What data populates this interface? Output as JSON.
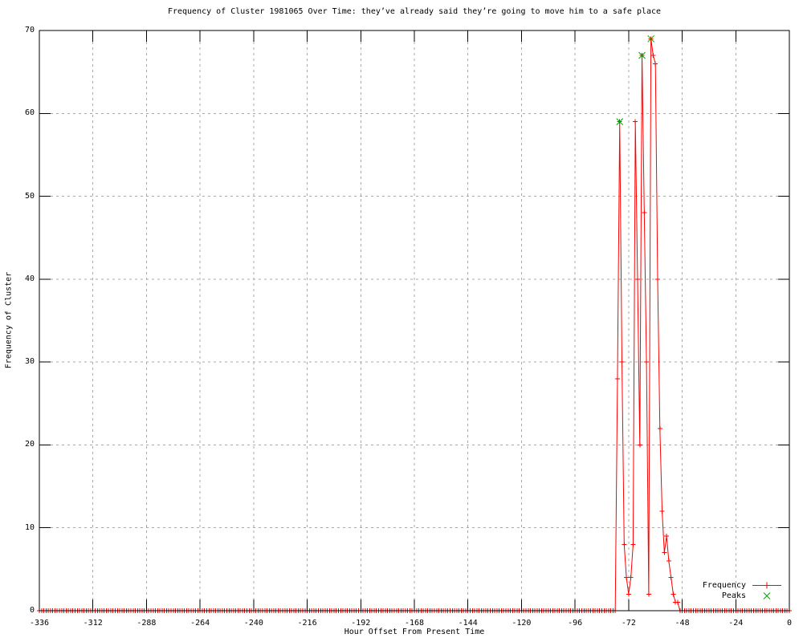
{
  "title": "Frequency of Cluster 1981065 Over Time: they’ve already said they’re going to move him to a safe place",
  "colors": {
    "frequency_series": "#ff0000",
    "peaks_series": "#00a400",
    "grid": "#a8a8a8",
    "frame": "#000000",
    "background": "#ffffff"
  },
  "legend": {
    "entries": [
      {
        "label": "Frequency",
        "color": "#ff0000",
        "marker": "plus",
        "line": true
      },
      {
        "label": "Peaks",
        "color": "#00a400",
        "marker": "cross",
        "line": false
      }
    ]
  },
  "chart_data": {
    "type": "line",
    "title": "Frequency of Cluster 1981065 Over Time: they’ve already said they’re going to move him to a safe place",
    "xlabel": "Hour Offset From Present Time",
    "ylabel": "Frequency of Cluster",
    "xlim": [
      -336,
      0
    ],
    "ylim": [
      0,
      70
    ],
    "x_ticks": [
      -336,
      -312,
      -288,
      -264,
      -240,
      -216,
      -192,
      -168,
      -144,
      -120,
      -96,
      -72,
      -48,
      -24,
      0
    ],
    "y_ticks": [
      0,
      10,
      20,
      30,
      40,
      50,
      60,
      70
    ],
    "grid": "dashed",
    "legend_position": "bottom-right",
    "sampling": "hourly; every hour from -336 to 0 has a data point; hours not listed in nonzero_points have value 0",
    "series": [
      {
        "name": "Frequency",
        "style": "linespoints-plus",
        "nonzero_points": [
          [
            -78,
            0
          ],
          [
            -77,
            28
          ],
          [
            -76,
            59
          ],
          [
            -75,
            30
          ],
          [
            -74,
            8
          ],
          [
            -73,
            4
          ],
          [
            -72,
            2
          ],
          [
            -71,
            4
          ],
          [
            -70,
            8
          ],
          [
            -69,
            59
          ],
          [
            -68,
            40
          ],
          [
            -67,
            20
          ],
          [
            -66,
            67
          ],
          [
            -65,
            48
          ],
          [
            -64,
            30
          ],
          [
            -63,
            2
          ],
          [
            -62,
            69
          ],
          [
            -61,
            67
          ],
          [
            -60,
            66
          ],
          [
            -59,
            40
          ],
          [
            -58,
            22
          ],
          [
            -57,
            12
          ],
          [
            -56,
            7
          ],
          [
            -55,
            9
          ],
          [
            -54,
            6
          ],
          [
            -53,
            4
          ],
          [
            -52,
            2
          ],
          [
            -51,
            1
          ],
          [
            -50,
            1
          ],
          [
            -49,
            0
          ]
        ]
      },
      {
        "name": "Peaks",
        "style": "points-cross",
        "points": [
          [
            -76,
            59
          ],
          [
            -66,
            67
          ],
          [
            -62,
            69
          ]
        ]
      }
    ]
  }
}
